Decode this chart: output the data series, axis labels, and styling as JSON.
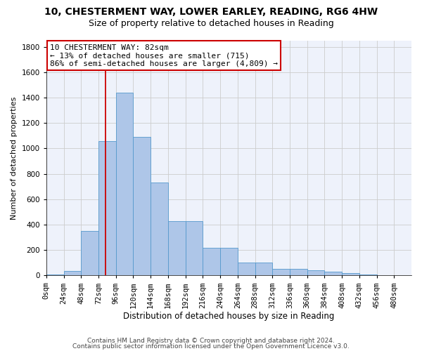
{
  "title1": "10, CHESTERMENT WAY, LOWER EARLEY, READING, RG6 4HW",
  "title2": "Size of property relative to detached houses in Reading",
  "xlabel": "Distribution of detached houses by size in Reading",
  "ylabel": "Number of detached properties",
  "bar_values": [
    10,
    35,
    350,
    1055,
    1440,
    1090,
    730,
    430,
    430,
    215,
    215,
    100,
    100,
    50,
    50,
    40,
    30,
    20,
    10,
    5,
    5
  ],
  "bin_edges": [
    0,
    24,
    48,
    72,
    96,
    120,
    144,
    168,
    192,
    216,
    240,
    264,
    288,
    312,
    336,
    360,
    384,
    408,
    432,
    456,
    480,
    504
  ],
  "bar_color": "#aec6e8",
  "bar_edge_color": "#5599cc",
  "property_size": 82,
  "annotation_line1": "10 CHESTERMENT WAY: 82sqm",
  "annotation_line2": "← 13% of detached houses are smaller (715)",
  "annotation_line3": "86% of semi-detached houses are larger (4,809) →",
  "vline_color": "#cc0000",
  "box_edge_color": "#cc0000",
  "ylim": [
    0,
    1850
  ],
  "yticks": [
    0,
    200,
    400,
    600,
    800,
    1000,
    1200,
    1400,
    1600,
    1800
  ],
  "footnote1": "Contains HM Land Registry data © Crown copyright and database right 2024.",
  "footnote2": "Contains public sector information licensed under the Open Government Licence v3.0.",
  "title1_fontsize": 10,
  "title2_fontsize": 9,
  "xlabel_fontsize": 8.5,
  "ylabel_fontsize": 8,
  "tick_fontsize": 7.5,
  "annotation_fontsize": 8,
  "footnote_fontsize": 6.5,
  "grid_color": "#cccccc",
  "background_color": "#eef2fb"
}
